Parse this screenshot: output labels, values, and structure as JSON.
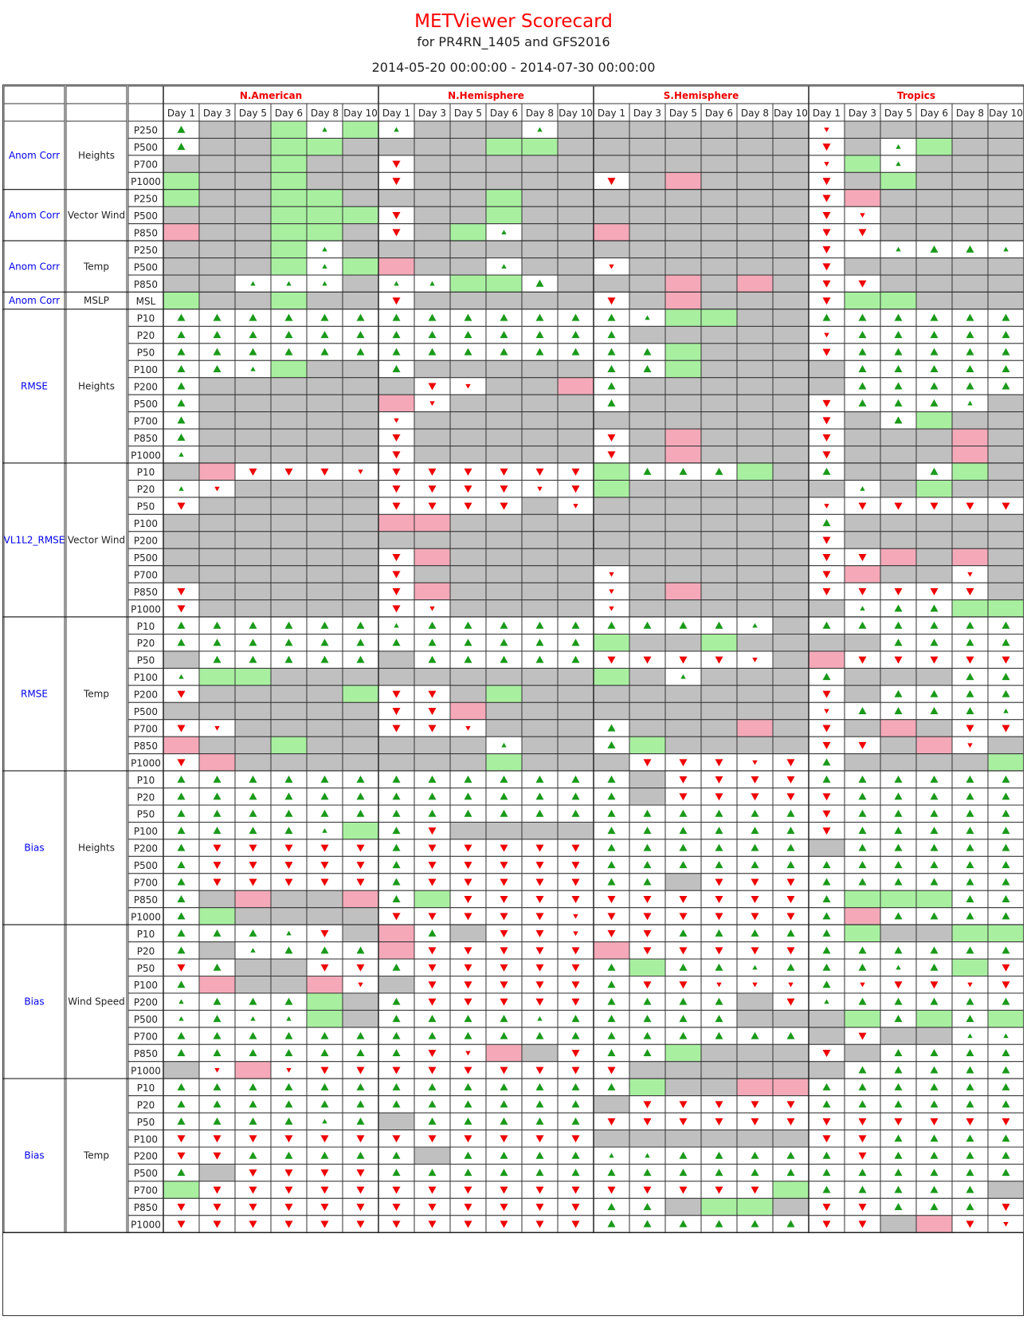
{
  "header": {
    "title": "METViewer Scorecard",
    "subtitle": "for PR4RN_1405 and GFS2016",
    "date_range": "2014-05-20 00:00:00 - 2014-07-30 00:00:00"
  },
  "colors": {
    "better_strong": "#a8f0a0",
    "worse_strong": "#f5a9b8",
    "not_significant": "#c0c0c0",
    "up_arrow": "#1a9a1a",
    "down_arrow": "#ee0000",
    "region_header": "#ee0000",
    "stat_label": "#0000ee"
  },
  "legend_codes": {
    "U": "better (up, large)",
    "u": "better (up, small)",
    "D": "worse (down, large)",
    "d": "worse (down, small)",
    "G": "green cell",
    "P": "pink cell",
    "S": "gray cell",
    "W": "white empty cell"
  },
  "chart_data": {
    "type": "table",
    "regions": [
      "N.American",
      "N.Hemisphere",
      "S.Hemisphere",
      "Tropics"
    ],
    "days": [
      "Day 1",
      "Day 3",
      "Day 5",
      "Day 6",
      "Day 8",
      "Day 10"
    ],
    "groups": [
      {
        "stat": "Anom Corr",
        "variable": "Heights",
        "rows": [
          {
            "level": "P250",
            "cells": "USSGuG uSSSuS SSSSSS dSSSSS"
          },
          {
            "level": "P500",
            "cells": "USSGGS SSSGGS SSSSSS DSuGSS"
          },
          {
            "level": "P700",
            "cells": "SSSGSS DSSSSS SSSSSS dGuSSS"
          },
          {
            "level": "P1000",
            "cells": "GSSGSS DSSSSS DSPSSS DSGSSS"
          }
        ]
      },
      {
        "stat": "Anom Corr",
        "variable": "Vector Wind",
        "rows": [
          {
            "level": "P250",
            "cells": "GSSGGS SSSGSS SSSSSS DPSSSS"
          },
          {
            "level": "P500",
            "cells": "SSSGGG DSSGSS SSSSSS DdSSSS"
          },
          {
            "level": "P850",
            "cells": "PSSGGS DSGuSS PSSSSS DDSSSS"
          }
        ]
      },
      {
        "stat": "Anom Corr",
        "variable": "Temp",
        "rows": [
          {
            "level": "P250",
            "cells": "SSSGuS SSSSSS SSSSSS DWuUUu"
          },
          {
            "level": "P500",
            "cells": "SSSGuG PSSuSS dSSSSS DSSSSS"
          },
          {
            "level": "P850",
            "cells": "SSuuuS uuGGUS SSPSPS DDSSSS"
          }
        ]
      },
      {
        "stat": "Anom Corr",
        "variable": "MSLP",
        "rows": [
          {
            "level": "MSL",
            "cells": "GSSGSS DSSSSS DSPSSS DGGSSS"
          }
        ]
      },
      {
        "stat": "RMSE",
        "variable": "Heights",
        "rows": [
          {
            "level": "P10",
            "cells": "UUUUUU UUUUUU UuGGSS UUUUUU"
          },
          {
            "level": "P20",
            "cells": "UUUUUU UUUUUU USSSSS dUUUUU"
          },
          {
            "level": "P50",
            "cells": "UUUUUU UUUUUU UUGSSS DUUUUU"
          },
          {
            "level": "P100",
            "cells": "UUuGSS USSSSS UUGSSS SUUUUU"
          },
          {
            "level": "P200",
            "cells": "USSSSS SDdSSP USSSSS SUUUUU"
          },
          {
            "level": "P500",
            "cells": "USSSSS PdSSSS USSSSS DUUUuS"
          },
          {
            "level": "P700",
            "cells": "USSSSS dSSSSS SSSSSS DSUGSS"
          },
          {
            "level": "P850",
            "cells": "USSSSS DSSSSS DSPSSS DSSSPS"
          },
          {
            "level": "P1000",
            "cells": "uSSSSS DSSSSS DSPSSS DSSSPS"
          }
        ]
      },
      {
        "stat": "VL1L2_RMSE",
        "variable": "Vector Wind",
        "rows": [
          {
            "level": "P10",
            "cells": "SPDDDd DDDDDD GUUUGS USSUGS"
          },
          {
            "level": "P20",
            "cells": "udSSSS DDDDdD GSSSSS SuSGSS"
          },
          {
            "level": "P50",
            "cells": "DSSSSS DDDDSd SSSSSS dDDDDD"
          },
          {
            "level": "P100",
            "cells": "SSSSSS PPSSSS SSSSSS USSSSS"
          },
          {
            "level": "P200",
            "cells": "SSSSSS SSSSSS SSSSSS DSSSSS"
          },
          {
            "level": "P500",
            "cells": "SSSSSS DPSSSS SSSSSS DDPSPS"
          },
          {
            "level": "P700",
            "cells": "SSSSSS DSSSSS dSSSSS DPSSdS"
          },
          {
            "level": "P850",
            "cells": "DSSSSS DPSSSS dSPSSS DDDDDS"
          },
          {
            "level": "P1000",
            "cells": "DSSSSS DdSSSS dSSSSS SuUUGG"
          }
        ]
      },
      {
        "stat": "RMSE",
        "variable": "Temp",
        "rows": [
          {
            "level": "P10",
            "cells": "UUUUUU uUUUUU UUUUuS UUUUUU"
          },
          {
            "level": "P20",
            "cells": "UUUUUU UUUUUU GSSGSS SSUUUU"
          },
          {
            "level": "P50",
            "cells": "SUUUUU SUUUUU DDDDdS PDDDDD"
          },
          {
            "level": "P100",
            "cells": "uGGSSS SSSSSS GSuSSS USSSUU"
          },
          {
            "level": "P200",
            "cells": "DSSSSG DDSGSS SSSSSS DSUUUU"
          },
          {
            "level": "P500",
            "cells": "SSSSSS DDPSSS SSSSSS dUUUUu"
          },
          {
            "level": "P700",
            "cells": "DdSSSS DDdSSS USSSPS DSPSDD"
          },
          {
            "level": "P850",
            "cells": "PSSGSS SSSuSS UGSSSS DDSPdS"
          },
          {
            "level": "P1000",
            "cells": "DPSSSS SSSGSS SDDDdD USSSSG"
          }
        ]
      },
      {
        "stat": "Bias",
        "variable": "Heights",
        "rows": [
          {
            "level": "P10",
            "cells": "UUUUUU UUUUUU USDDDD UUUUUU"
          },
          {
            "level": "P20",
            "cells": "UUUUUU UUUUUU USDDDD DUUUUU"
          },
          {
            "level": "P50",
            "cells": "UUUUUU UUUUUU UUUUUU DUUUUU"
          },
          {
            "level": "P100",
            "cells": "UUUUuG UDSSSS UUUUUU DUUUUU"
          },
          {
            "level": "P200",
            "cells": "UDDDDD UDDDDD UUUUUU SUUUUU"
          },
          {
            "level": "P500",
            "cells": "UDDDDD UDDDDD UUUUUU UUUUUU"
          },
          {
            "level": "P700",
            "cells": "UDDDDD UDDDDD UUSDDD UUUUUU"
          },
          {
            "level": "P850",
            "cells": "USPSSP UGDDDD DDDDDD UGGGUU"
          },
          {
            "level": "P1000",
            "cells": "UGSSSS DDDDDd DDDDDD UPUUUU"
          }
        ]
      },
      {
        "stat": "Bias",
        "variable": "Wind Speed",
        "rows": [
          {
            "level": "P10",
            "cells": "UUUuDS PUSDDd DDUUUU UGSSGG"
          },
          {
            "level": "P20",
            "cells": "USuUUU PDDDDD PDDDDD UUUUUU"
          },
          {
            "level": "P50",
            "cells": "DUSSDD UDDDDD UGUUuU UUuUGD"
          },
          {
            "level": "P100",
            "cells": "UPSSPd SDDDDD UDDddd UdDDdD"
          },
          {
            "level": "P200",
            "cells": "uUUUGS UDDDDD UUUUSD uUUUUU"
          },
          {
            "level": "P500",
            "cells": "uUuuGS UUUUuU UUUUSS SGUGUG"
          },
          {
            "level": "P700",
            "cells": "UUUUUU UUUUUU UUUUUU SDSSuu"
          },
          {
            "level": "P850",
            "cells": "UUUUUU UDdPSD UUGSSS DSUUUU"
          },
          {
            "level": "P1000",
            "cells": "SdPdDD DDDDDD DSSSSS SUUUUU"
          }
        ]
      },
      {
        "stat": "Bias",
        "variable": "Temp",
        "rows": [
          {
            "level": "P10",
            "cells": "UUUUUU UUUUUU UGSSPP UUUUUU"
          },
          {
            "level": "P20",
            "cells": "UUUUUU UUUUUU SDDDDD UUUUUU"
          },
          {
            "level": "P50",
            "cells": "UUUUuU SUUUUU DDDDDD DDDDDD"
          },
          {
            "level": "P100",
            "cells": "DDDDDD DDDDDD SSSSSS DDUUUU"
          },
          {
            "level": "P200",
            "cells": "DDUUUU USUUUU uuUUUU UDUUUU"
          },
          {
            "level": "P500",
            "cells": "USDDDD UUUUUU UUUUUU UUUUUU"
          },
          {
            "level": "P700",
            "cells": "GDDDDD DDDDDD DDDDDG UUUUUS"
          },
          {
            "level": "P850",
            "cells": "DDDDDD DDDDDD UUSGGS DDUUUD"
          },
          {
            "level": "P1000",
            "cells": "DDDDDD DDDDDD UUUUUU DDSPDd"
          }
        ]
      }
    ]
  }
}
